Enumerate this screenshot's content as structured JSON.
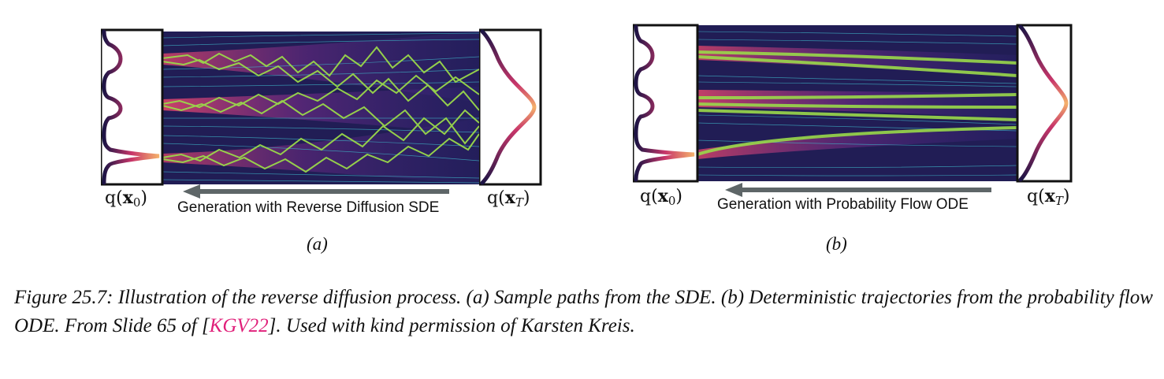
{
  "panels": [
    {
      "id": "a",
      "left_label_q": "q",
      "left_label_arg": "x",
      "left_label_sub": "0",
      "right_label_q": "q",
      "right_label_arg": "x",
      "right_label_sub": "T",
      "arrow_label": "Generation with Reverse Diffusion SDE",
      "sub_label": "(a)"
    },
    {
      "id": "b",
      "left_label_q": "q",
      "left_label_arg": "x",
      "left_label_sub": "0",
      "right_label_q": "q",
      "right_label_arg": "x",
      "right_label_sub": "T",
      "arrow_label": "Generation with Probability Flow ODE",
      "sub_label": "(b)"
    }
  ],
  "caption": {
    "prefix": "Figure 25.7: Illustration of the reverse diffusion process. (a) Sample paths from the SDE. (b) Deterministic trajectories from the probability flow ODE. From Slide 65 of [",
    "citation": "KGV22",
    "suffix": "]. Used with kind permission of Karsten Kreis."
  },
  "colors": {
    "field_bg": "#101028",
    "streamline": "#3fb7c9",
    "path": "#9ad94a",
    "density_low": "#2a1b6b",
    "density_mid": "#c8366a",
    "density_high": "#f5b26b",
    "arrow": "#5e6668",
    "citation": "#e0207a"
  }
}
